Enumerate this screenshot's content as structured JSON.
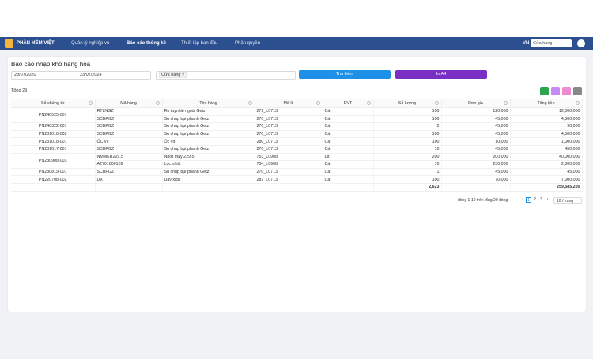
{
  "nav": {
    "brand": "PHẦN MỀM VIỆT",
    "menu": [
      "Quản lý nghiệp vụ",
      "Báo cáo thống kê",
      "Thiết lập ban đầu",
      "Phân quyền"
    ],
    "language": "VN",
    "store": "Cửa hàng"
  },
  "page": {
    "title": "Báo cáo nhập kho hàng hóa",
    "filters": {
      "date_from": "23/07/2020",
      "date_to": "23/07/2024",
      "store_tag": "Cửa hàng"
    },
    "buttons": {
      "search": "Tìm kiếm",
      "print": "In A4"
    },
    "total_label": "Tổng 29",
    "pagination": {
      "info": "dòng 1-10 trên tổng 29 dòng",
      "pages": [
        "1",
        "2",
        "3"
      ],
      "page_size": "10 / trang"
    }
  },
  "table": {
    "columns": [
      "Số chứng từ",
      "Mã hàng",
      "Tên hàng",
      "Mã lô",
      "ĐVT",
      "Số lượng",
      "Đơn giá",
      "Tổng tiền"
    ],
    "groups": [
      {
        "doc": "PN240525-001",
        "items": [
          [
            "RTLNGZ",
            "Ro tuyn lái ngoài Getz",
            "271_L0713",
            "Cái",
            "100",
            "120,000",
            "12,000,000"
          ],
          [
            "SCBPGZ",
            "Su chụp bụi phanh Getz",
            "270_L0713",
            "Cái",
            "100",
            "45,000",
            "4,500,000"
          ]
        ]
      },
      {
        "doc": "PN240322-001",
        "items": [
          [
            "SCBPGZ",
            "Su chụp bụi phanh Getz",
            "270_L0713",
            "Cái",
            "2",
            "45,000",
            "90,000"
          ]
        ]
      },
      {
        "doc": "PN231018-002",
        "items": [
          [
            "SCBPGZ",
            "Su chụp bụi phanh Getz",
            "270_L0713",
            "Cái",
            "100",
            "45,000",
            "4,500,000"
          ]
        ]
      },
      {
        "doc": "PN231018-001",
        "items": [
          [
            "ỐC vít",
            "Ốc vít",
            "280_L0713",
            "Cái",
            "100",
            "10,000",
            "1,000,000"
          ]
        ]
      },
      {
        "doc": "PN231017-001",
        "items": [
          [
            "SCBPGZ",
            "Su chụp bụi phanh Getz",
            "270_L0713",
            "Cái",
            "10",
            "45,000",
            "450,000"
          ]
        ]
      },
      {
        "doc": "PN230908-003",
        "items": [
          [
            "NMMER229.5",
            "Nhớt máy 229.5",
            "753_L0908",
            "Lít",
            "200",
            "200,000",
            "40,000,000"
          ],
          [
            "A2701800109",
            "Lọc nhớt",
            "754_L0908",
            "Cái",
            "10",
            "230,000",
            "2,300,000"
          ]
        ]
      },
      {
        "doc": "PN230819-001",
        "items": [
          [
            "SCBPGZ",
            "Su chụp bụi phanh Getz",
            "270_L0713",
            "Cái",
            "1",
            "45,000",
            "45,000"
          ]
        ]
      },
      {
        "doc": "PN220708-002",
        "items": [
          [
            "DX",
            "Dây xích",
            "287_L0713",
            "Cái",
            "100",
            "70,000",
            "7,000,000"
          ]
        ]
      }
    ],
    "totals": {
      "quantity": "2,623",
      "amount": "259,585,200"
    }
  }
}
